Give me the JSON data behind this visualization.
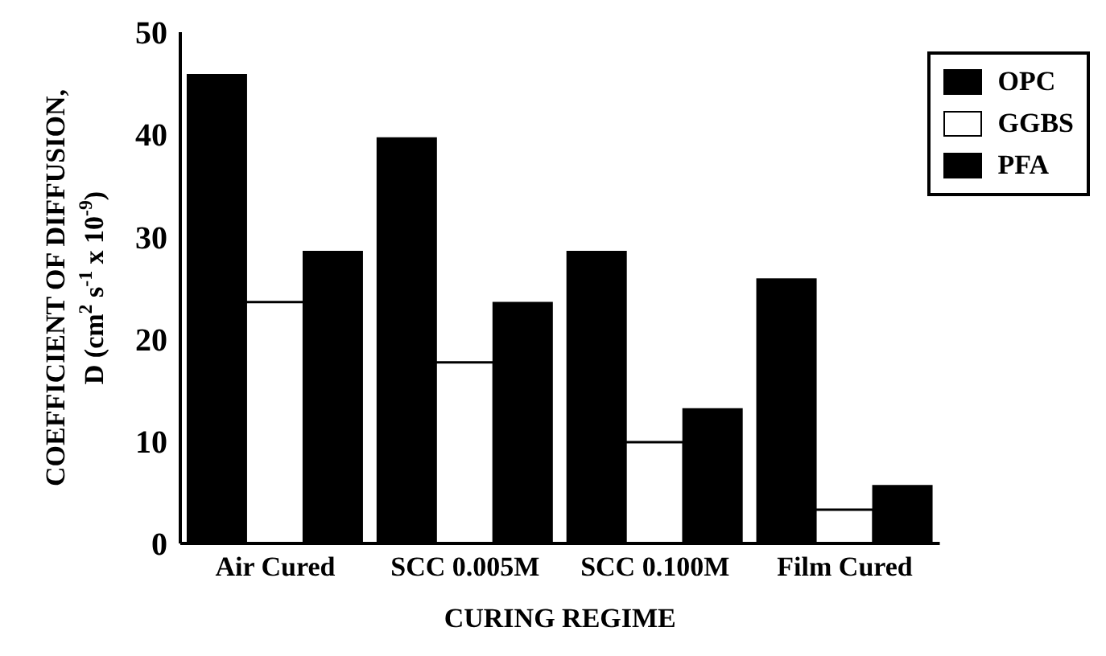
{
  "chart_data": {
    "type": "bar",
    "xlabel": "CURING REGIME",
    "ylabel": "COEFFICIENT OF DIFFUSION,\nD (cm$^{2}$ s$^{-1}$ x 10$^{-9}$)",
    "categories": [
      "Air Cured",
      "SCC 0.005M",
      "SCC 0.100M",
      "Film Cured"
    ],
    "series": [
      {
        "name": "OPC",
        "color": "#000000",
        "values": [
          45.8,
          39.6,
          28.5,
          25.8
        ]
      },
      {
        "name": "GGBS",
        "color": "#ffffff",
        "values": [
          23.6,
          17.7,
          9.9,
          3.3
        ]
      },
      {
        "name": "PFA",
        "color": "#000000",
        "values": [
          28.5,
          23.5,
          13.1,
          5.6
        ]
      }
    ],
    "ylim": [
      0,
      50
    ],
    "yticks": [
      0,
      10,
      20,
      30,
      40,
      50
    ],
    "grid": false,
    "legend": "top right"
  }
}
